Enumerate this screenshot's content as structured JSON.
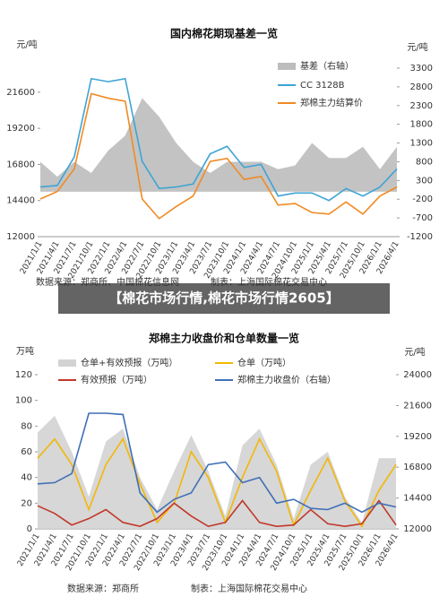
{
  "banner": "【棉花市场行情,棉花市场行情2605】",
  "chart_data": [
    {
      "type": "line",
      "title": "国内棉花期现基差一览",
      "y_label": "元/吨",
      "y2_label": "元/吨",
      "source": "数据来源：郑商所、中国棉花信息网",
      "producer": "制表：上海国际棉花交易中心",
      "categories": [
        "2021/1/1",
        "2021/4/1",
        "2021/7/1",
        "2021/10/1",
        "2022/1/1",
        "2022/4/1",
        "2022/7/1",
        "2022/10/1",
        "2023/1/1",
        "2023/4/1",
        "2023/7/1",
        "2023/10/1",
        "2024/1/1",
        "2024/4/1",
        "2024/7/1",
        "2024/10/1",
        "2025/1/1",
        "2025/4/1",
        "2025/7/1",
        "2025/10/1",
        "2026/1/1",
        "2026/4/1"
      ],
      "ylim": [
        12000,
        23200
      ],
      "yticks": [
        12000,
        14400,
        16800,
        19200,
        21600
      ],
      "y2lim": [
        -1200,
        3300
      ],
      "y2ticks": [
        -1200,
        -700,
        -200,
        300,
        800,
        1300,
        1800,
        2300,
        2800,
        3300
      ],
      "series": [
        {
          "name": "基差（右轴）",
          "type": "area",
          "axis": "y2",
          "color": "#bdbdbd",
          "values": [
            800,
            400,
            800,
            500,
            1100,
            1500,
            2500,
            2000,
            1300,
            800,
            500,
            800,
            800,
            800,
            600,
            700,
            1300,
            900,
            900,
            1200,
            600,
            1200
          ]
        },
        {
          "name": "CC 3128B",
          "type": "line",
          "color": "#3fa4d4",
          "values": [
            15300,
            15400,
            17300,
            22500,
            22300,
            22500,
            17000,
            15200,
            15300,
            15500,
            17500,
            18000,
            16600,
            16800,
            14700,
            14900,
            14900,
            14400,
            15200,
            14700,
            15300,
            16500
          ]
        },
        {
          "name": "郑棉主力结算价",
          "type": "line",
          "color": "#f08a24",
          "values": [
            14500,
            15000,
            16500,
            21500,
            21200,
            21000,
            14500,
            13200,
            14000,
            14700,
            17000,
            17200,
            15800,
            16000,
            14100,
            14200,
            13600,
            13500,
            14300,
            13500,
            14700,
            15300
          ]
        }
      ]
    },
    {
      "type": "line",
      "title": "郑棉主力收盘价和仓单数量一览",
      "y_label": "万吨",
      "y2_label": "元/吨",
      "source": "数据来源：郑商所",
      "producer": "制表：上海国际棉花交易中心",
      "categories": [
        "2021/1/1",
        "2021/4/1",
        "2021/7/1",
        "2021/10/1",
        "2022/1/1",
        "2022/4/1",
        "2022/7/1",
        "2022/10/1",
        "2023/1/1",
        "2023/4/1",
        "2023/7/1",
        "2023/10/1",
        "2024/1/1",
        "2024/4/1",
        "2024/7/1",
        "2024/10/1",
        "2025/1/1",
        "2025/4/1",
        "2025/7/1",
        "2025/10/1",
        "2026/1/1",
        "2026/4/1"
      ],
      "ylim": [
        0,
        120
      ],
      "yticks": [
        0,
        20,
        40,
        60,
        80,
        100,
        120
      ],
      "y2lim": [
        12000,
        24000
      ],
      "y2ticks": [
        12000,
        14400,
        16800,
        19200,
        21600,
        24000
      ],
      "series": [
        {
          "name": "仓单+有效预报（万吨）",
          "type": "area",
          "color": "#d3d3d3",
          "values": [
            75,
            88,
            60,
            25,
            68,
            78,
            40,
            15,
            45,
            73,
            45,
            10,
            65,
            78,
            50,
            8,
            50,
            60,
            25,
            5,
            55,
            55
          ]
        },
        {
          "name": "仓单（万吨）",
          "type": "line",
          "color": "#f2b705",
          "values": [
            55,
            70,
            50,
            15,
            50,
            70,
            35,
            5,
            20,
            60,
            40,
            5,
            40,
            70,
            45,
            3,
            30,
            55,
            22,
            2,
            30,
            50
          ]
        },
        {
          "name": "有效预报（万吨）",
          "type": "line",
          "color": "#c0392b",
          "values": [
            18,
            12,
            3,
            8,
            15,
            5,
            2,
            8,
            20,
            10,
            2,
            5,
            22,
            5,
            2,
            3,
            15,
            4,
            2,
            4,
            22,
            3
          ]
        },
        {
          "name": "郑棉主力收盘价（右轴）",
          "type": "line",
          "axis": "y2",
          "color": "#3f6fb6",
          "values": [
            15500,
            15600,
            16300,
            21000,
            21000,
            20900,
            14800,
            13300,
            14300,
            14800,
            17000,
            17200,
            15600,
            16000,
            14000,
            14300,
            13600,
            13500,
            14000,
            13300,
            14000,
            13700
          ]
        }
      ]
    }
  ]
}
